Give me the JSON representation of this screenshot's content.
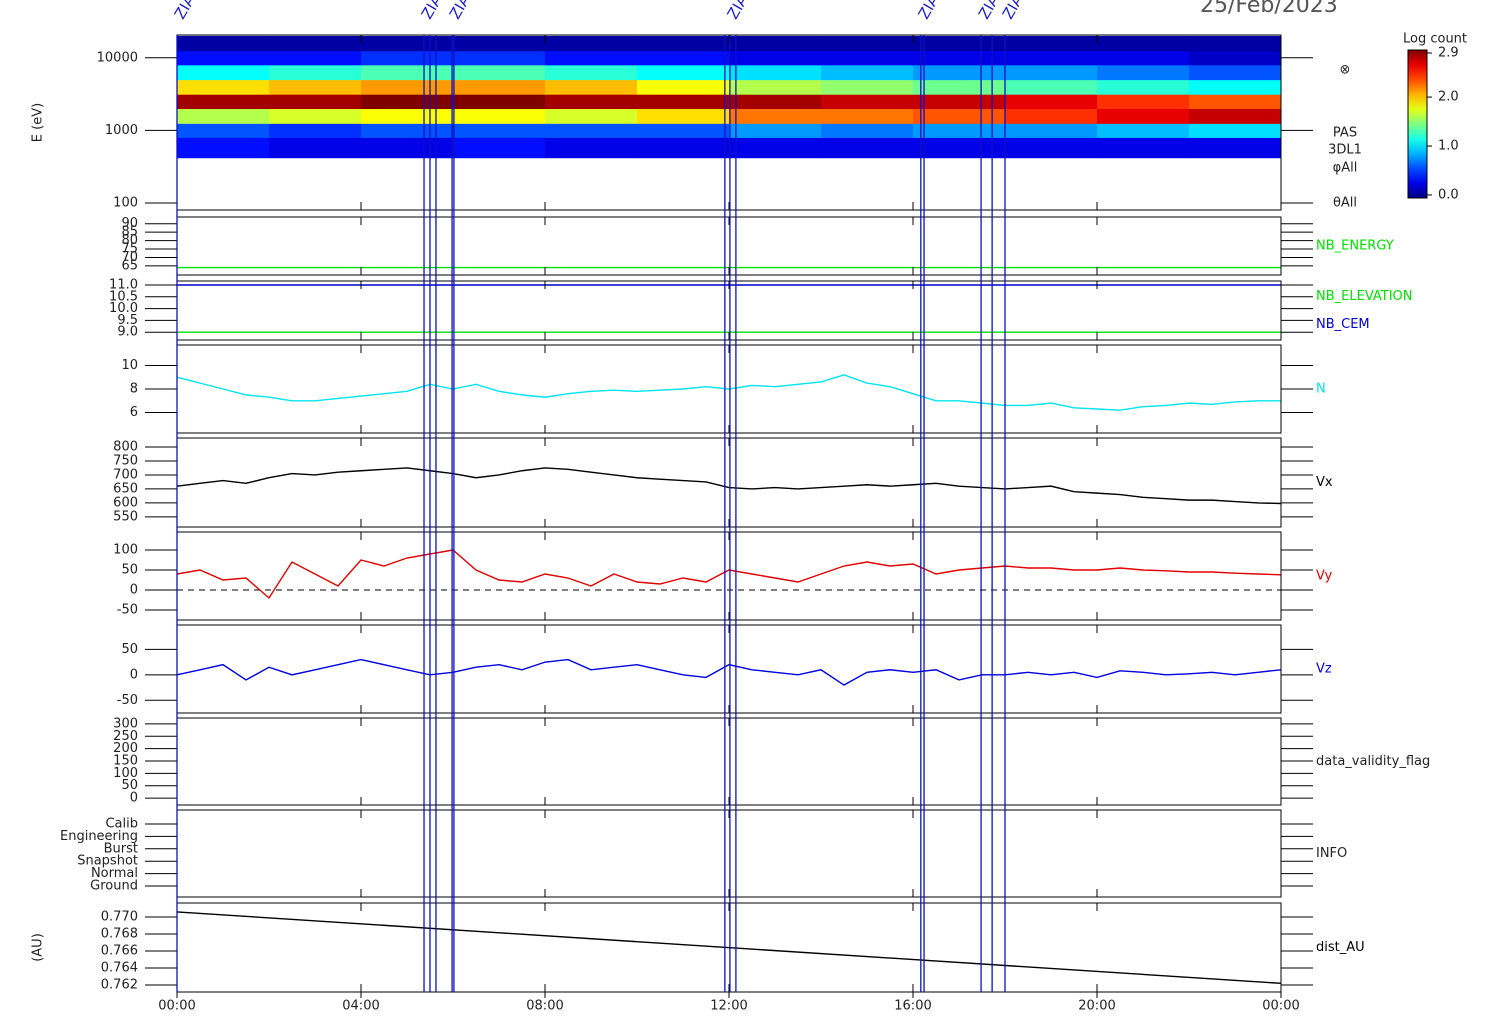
{
  "chart_data": [
    {
      "type": "heatmap",
      "title": "25/Feb/2023",
      "ylabel": "E (eV)",
      "log_scale": true,
      "ylim": [
        80,
        20600
      ],
      "yticks": [
        100,
        1000,
        10000
      ],
      "x": [
        0,
        2,
        4,
        6,
        8,
        10,
        12,
        14,
        16,
        18,
        20,
        22,
        24
      ],
      "y": [
        420,
        800,
        1250,
        2000,
        3150,
        5000,
        8000,
        12500,
        20000
      ],
      "z": [
        [
          0.4,
          0.3,
          0.3,
          0.4,
          0.3,
          0.3,
          0.3,
          0.3,
          0.3,
          0.3,
          0.3,
          0.3
        ],
        [
          0.6,
          0.5,
          0.6,
          0.6,
          0.6,
          0.6,
          0.8,
          0.7,
          0.8,
          0.8,
          0.9,
          1.0
        ],
        [
          1.6,
          1.7,
          1.8,
          1.8,
          1.7,
          1.9,
          2.2,
          2.2,
          2.3,
          2.4,
          2.6,
          2.7
        ],
        [
          2.8,
          2.8,
          2.9,
          2.9,
          2.8,
          2.8,
          2.8,
          2.7,
          2.7,
          2.6,
          2.4,
          2.3
        ],
        [
          1.9,
          2.0,
          2.1,
          2.1,
          2.0,
          1.8,
          1.6,
          1.5,
          1.4,
          1.3,
          1.2,
          1.1
        ],
        [
          1.1,
          1.2,
          1.3,
          1.3,
          1.2,
          1.1,
          1.0,
          0.9,
          0.8,
          0.8,
          0.7,
          0.6
        ],
        [
          0.4,
          0.4,
          0.5,
          0.5,
          0.4,
          0.4,
          0.3,
          0.3,
          0.3,
          0.3,
          0.3,
          0.2
        ],
        [
          0.1,
          0.1,
          0.1,
          0.1,
          0.1,
          0.1,
          0.1,
          0.1,
          0.1,
          0.1,
          0.1,
          0.1
        ]
      ],
      "zlim": [
        0,
        2.9
      ],
      "colorbar": {
        "label": "Log count",
        "ticks": [
          {
            "value": 0,
            "label": "0.0"
          },
          {
            "value": 1,
            "label": "1.0"
          },
          {
            "value": 2,
            "label": "2.0"
          },
          2.9
        ]
      },
      "annotations": [
        "⊗",
        "PAS",
        "3DL1",
        "φAll",
        "θAll"
      ],
      "markers": {
        "x": [
          0,
          5.37,
          5.5,
          5.63,
          5.98,
          6.02,
          11.91,
          12.02,
          12.15,
          16.17,
          16.24,
          17.48,
          17.72,
          18.0
        ],
        "labels": [
          "ZIAS",
          "ZIAS",
          null,
          null,
          "ZIAS",
          null,
          null,
          "ZIAS",
          null,
          "ZIAS",
          null,
          "ZIAS",
          null,
          "ZIAS"
        ]
      }
    },
    {
      "type": "line",
      "ylim": [
        59.6,
        94
      ],
      "yticks": [
        65,
        70,
        75,
        80,
        85,
        90
      ],
      "series": [
        {
          "name": "NB_ENERGY",
          "color": "#00e000",
          "x": [
            0,
            24
          ],
          "values": [
            64,
            64
          ]
        }
      ]
    },
    {
      "type": "line",
      "ylim": [
        8.67,
        11.17
      ],
      "yticks": [
        {
          "value": 9,
          "label": "9.0"
        },
        9.5,
        {
          "value": 10,
          "label": "10.0"
        },
        10.5,
        {
          "value": 11,
          "label": "11.0"
        }
      ],
      "series": [
        {
          "name": "NB_ELEVATION",
          "color": "#00e000",
          "x": [
            0,
            24
          ],
          "values": [
            9,
            9
          ]
        },
        {
          "name": "NB_CEM",
          "color": "#0000c8",
          "x": [
            0,
            24
          ],
          "values": [
            11,
            11
          ]
        }
      ]
    },
    {
      "type": "line",
      "ylim": [
        4.26,
        11.74
      ],
      "yticks": [
        6,
        8,
        10
      ],
      "series": [
        {
          "name": "N",
          "color": "#00e4f0",
          "x": [
            0,
            0.5,
            1,
            1.5,
            2,
            2.5,
            3,
            3.5,
            4,
            4.5,
            5,
            5.5,
            6,
            6.5,
            7,
            7.5,
            8,
            8.5,
            9,
            9.5,
            10,
            10.5,
            11,
            11.5,
            12,
            12.5,
            13,
            13.5,
            14,
            14.5,
            15,
            15.5,
            16,
            16.5,
            17,
            17.5,
            18,
            18.5,
            19,
            19.5,
            20,
            20.5,
            21,
            21.5,
            22,
            22.5,
            23,
            23.5,
            24
          ],
          "values": [
            9.0,
            8.5,
            8.0,
            7.5,
            7.3,
            7.0,
            7.0,
            7.2,
            7.4,
            7.6,
            7.8,
            8.4,
            8.0,
            8.4,
            7.8,
            7.5,
            7.3,
            7.6,
            7.8,
            7.9,
            7.8,
            7.9,
            8.0,
            8.2,
            8.0,
            8.3,
            8.2,
            8.4,
            8.6,
            9.2,
            8.5,
            8.2,
            7.6,
            7.0,
            7.0,
            6.8,
            6.6,
            6.6,
            6.8,
            6.4,
            6.3,
            6.2,
            6.5,
            6.6,
            6.8,
            6.7,
            6.9,
            7.0,
            7.0
          ]
        }
      ]
    },
    {
      "type": "line",
      "ylim": [
        514,
        832
      ],
      "yticks": [
        550,
        600,
        650,
        700,
        750,
        800
      ],
      "series": [
        {
          "name": "Vx",
          "color": "#000000",
          "x": [
            0,
            0.5,
            1,
            1.5,
            2,
            2.5,
            3,
            3.5,
            4,
            4.5,
            5,
            5.5,
            6,
            6.5,
            7,
            7.5,
            8,
            8.5,
            9,
            9.5,
            10,
            10.5,
            11,
            11.5,
            12,
            12.5,
            13,
            13.5,
            14,
            14.5,
            15,
            15.5,
            16,
            16.5,
            17,
            17.5,
            18,
            18.5,
            19,
            19.5,
            20,
            20.5,
            21,
            21.5,
            22,
            22.5,
            23,
            23.5,
            24
          ],
          "values": [
            660,
            670,
            680,
            670,
            690,
            705,
            700,
            710,
            715,
            720,
            725,
            715,
            705,
            690,
            700,
            715,
            725,
            720,
            710,
            700,
            690,
            685,
            680,
            675,
            655,
            650,
            655,
            650,
            655,
            660,
            665,
            660,
            665,
            670,
            660,
            655,
            650,
            655,
            660,
            640,
            635,
            630,
            620,
            615,
            610,
            610,
            605,
            600,
            598
          ]
        }
      ]
    },
    {
      "type": "line",
      "ylim": [
        -75,
        145
      ],
      "yticks": [
        -50,
        0,
        50,
        100
      ],
      "zero_line": true,
      "series": [
        {
          "name": "Vy",
          "color": "#e00000",
          "x": [
            0,
            0.5,
            1,
            1.5,
            2,
            2.5,
            3,
            3.5,
            4,
            4.5,
            5,
            5.5,
            6,
            6.5,
            7,
            7.5,
            8,
            8.5,
            9,
            9.5,
            10,
            10.5,
            11,
            11.5,
            12,
            12.5,
            13,
            13.5,
            14,
            14.5,
            15,
            15.5,
            16,
            16.5,
            17,
            17.5,
            18,
            18.5,
            19,
            19.5,
            20,
            20.5,
            21,
            21.5,
            22,
            22.5,
            23,
            23.5,
            24
          ],
          "values": [
            40,
            50,
            25,
            30,
            -20,
            70,
            40,
            10,
            75,
            60,
            80,
            90,
            100,
            50,
            25,
            20,
            40,
            30,
            10,
            40,
            20,
            15,
            30,
            20,
            50,
            40,
            30,
            20,
            40,
            60,
            70,
            60,
            65,
            40,
            50,
            55,
            60,
            55,
            55,
            50,
            50,
            55,
            50,
            48,
            45,
            45,
            42,
            40,
            38
          ]
        }
      ]
    },
    {
      "type": "line",
      "ylim": [
        -75,
        98
      ],
      "yticks": [
        -50,
        0,
        50
      ],
      "series": [
        {
          "name": "Vz",
          "color": "#0000e0",
          "x": [
            0,
            0.5,
            1,
            1.5,
            2,
            2.5,
            3,
            3.5,
            4,
            4.5,
            5,
            5.5,
            6,
            6.5,
            7,
            7.5,
            8,
            8.5,
            9,
            9.5,
            10,
            10.5,
            11,
            11.5,
            12,
            12.5,
            13,
            13.5,
            14,
            14.5,
            15,
            15.5,
            16,
            16.5,
            17,
            17.5,
            18,
            18.5,
            19,
            19.5,
            20,
            20.5,
            21,
            21.5,
            22,
            22.5,
            23,
            23.5,
            24
          ],
          "values": [
            0,
            10,
            20,
            -10,
            15,
            0,
            10,
            20,
            30,
            20,
            10,
            0,
            5,
            15,
            20,
            10,
            25,
            30,
            10,
            15,
            20,
            10,
            0,
            -5,
            20,
            10,
            5,
            0,
            10,
            -20,
            5,
            10,
            5,
            10,
            -10,
            0,
            0,
            5,
            0,
            5,
            -5,
            8,
            5,
            0,
            2,
            5,
            0,
            5,
            10
          ]
        }
      ]
    },
    {
      "type": "empty",
      "label": "data_validity_flag",
      "ylim": [
        -28,
        324
      ],
      "yticks": [
        0,
        50,
        100,
        150,
        200,
        250,
        300
      ]
    },
    {
      "type": "category",
      "label": "INFO",
      "categories": [
        "Calib",
        "Engineering",
        "Burst",
        "Snapshot",
        "Normal",
        "Ground"
      ]
    },
    {
      "type": "line",
      "ylabel": "(AU)",
      "ylim": [
        0.76118,
        0.77165
      ],
      "yticks": [
        0.762,
        0.764,
        0.766,
        0.768,
        {
          "value": 0.77,
          "label": "0.770"
        }
      ],
      "series": [
        {
          "name": "dist_AU",
          "color": "#000000",
          "x": [
            0,
            24
          ],
          "values": [
            0.7706,
            0.7622
          ]
        }
      ],
      "xlim": [
        0,
        24
      ],
      "xticks": [
        {
          "value": 0,
          "label": "00:00"
        },
        {
          "value": 4,
          "label": "04:00"
        },
        {
          "value": 8,
          "label": "08:00"
        },
        {
          "value": 12,
          "label": "12:00"
        },
        {
          "value": 16,
          "label": "16:00"
        },
        {
          "value": 20,
          "label": "20:00"
        },
        {
          "value": 24,
          "label": "00:00"
        }
      ]
    }
  ]
}
